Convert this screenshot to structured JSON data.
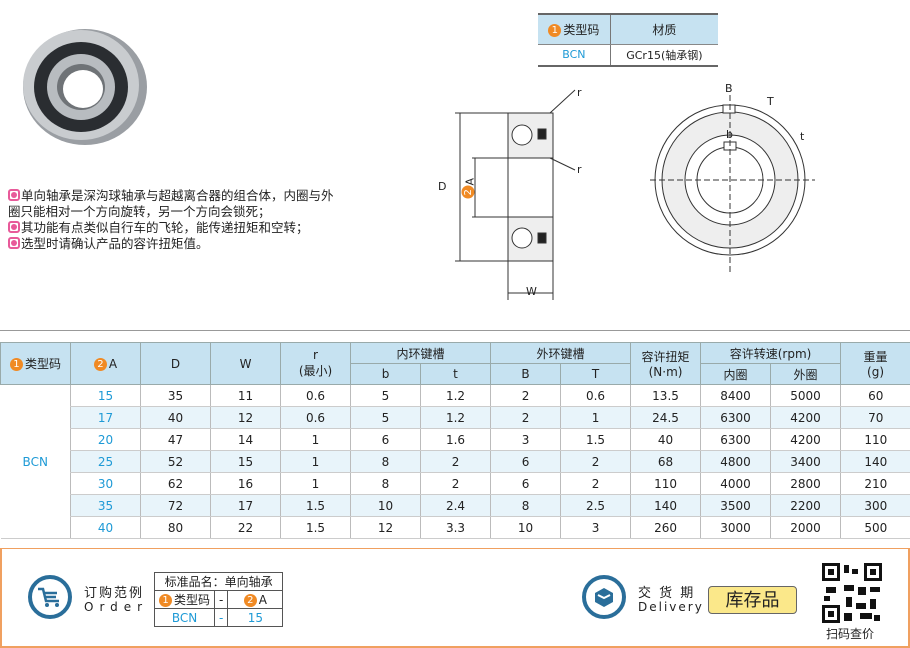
{
  "material_table": {
    "headers": [
      "类型码",
      "材质"
    ],
    "header_num": "1",
    "row": [
      "BCN",
      "GCr15(轴承钢)"
    ]
  },
  "description": [
    "单向轴承是深沟球轴承与超越离合器的组合体，内圈与外圈只能相对一个方向旋转，另一个方向会锁死；",
    "其功能有点类似自行车的飞轮，能传递扭矩和空转；",
    "选型时请确认产品的容许扭矩值。"
  ],
  "drawing_labels": {
    "D": "D",
    "A": "A",
    "A_num": "2",
    "W": "W",
    "r": "r",
    "B": "B",
    "T": "T",
    "b": "b",
    "t": "t"
  },
  "spec_table": {
    "headers": {
      "type": "类型码",
      "type_num": "1",
      "A": "A",
      "A_num": "2",
      "D": "D",
      "W": "W",
      "r": "r",
      "r_sub": "(最小)",
      "inner_key": "内环键槽",
      "outer_key": "外环键槽",
      "b": "b",
      "t": "t",
      "B": "B",
      "T": "T",
      "torque": "容许扭矩",
      "torque_unit": "(N·m)",
      "speed": "容许转速(rpm)",
      "inner": "内圈",
      "outer": "外圈",
      "weight": "重量",
      "weight_unit": "(g)"
    },
    "type_value": "BCN",
    "rows": [
      [
        "15",
        "35",
        "11",
        "0.6",
        "5",
        "1.2",
        "2",
        "0.6",
        "13.5",
        "8400",
        "5000",
        "60"
      ],
      [
        "17",
        "40",
        "12",
        "0.6",
        "5",
        "1.2",
        "2",
        "1",
        "24.5",
        "6300",
        "4200",
        "70"
      ],
      [
        "20",
        "47",
        "14",
        "1",
        "6",
        "1.6",
        "3",
        "1.5",
        "40",
        "6300",
        "4200",
        "110"
      ],
      [
        "25",
        "52",
        "15",
        "1",
        "8",
        "2",
        "6",
        "2",
        "68",
        "4800",
        "3400",
        "140"
      ],
      [
        "30",
        "62",
        "16",
        "1",
        "8",
        "2",
        "6",
        "2",
        "110",
        "4000",
        "2800",
        "210"
      ],
      [
        "35",
        "72",
        "17",
        "1.5",
        "10",
        "2.4",
        "8",
        "2.5",
        "140",
        "3500",
        "2200",
        "300"
      ],
      [
        "40",
        "80",
        "22",
        "1.5",
        "12",
        "3.3",
        "10",
        "3",
        "260",
        "3000",
        "2000",
        "500"
      ]
    ]
  },
  "order": {
    "title": "订购范例",
    "title_en": "Order",
    "std_name": "标准品名：单向轴承",
    "h1": "类型码",
    "h1_num": "1",
    "dash": "-",
    "h2": "A",
    "h2_num": "2",
    "v1": "BCN",
    "v2": "15"
  },
  "delivery": {
    "title": "交 货 期",
    "title_en": "Delivery",
    "badge": "库存品"
  },
  "qr": {
    "label": "扫码查价"
  },
  "colors": {
    "accent_blue": "#1e9ad6",
    "header_bg": "#c6e2f1",
    "orange": "#f08a24",
    "pink": "#e85a9a"
  }
}
